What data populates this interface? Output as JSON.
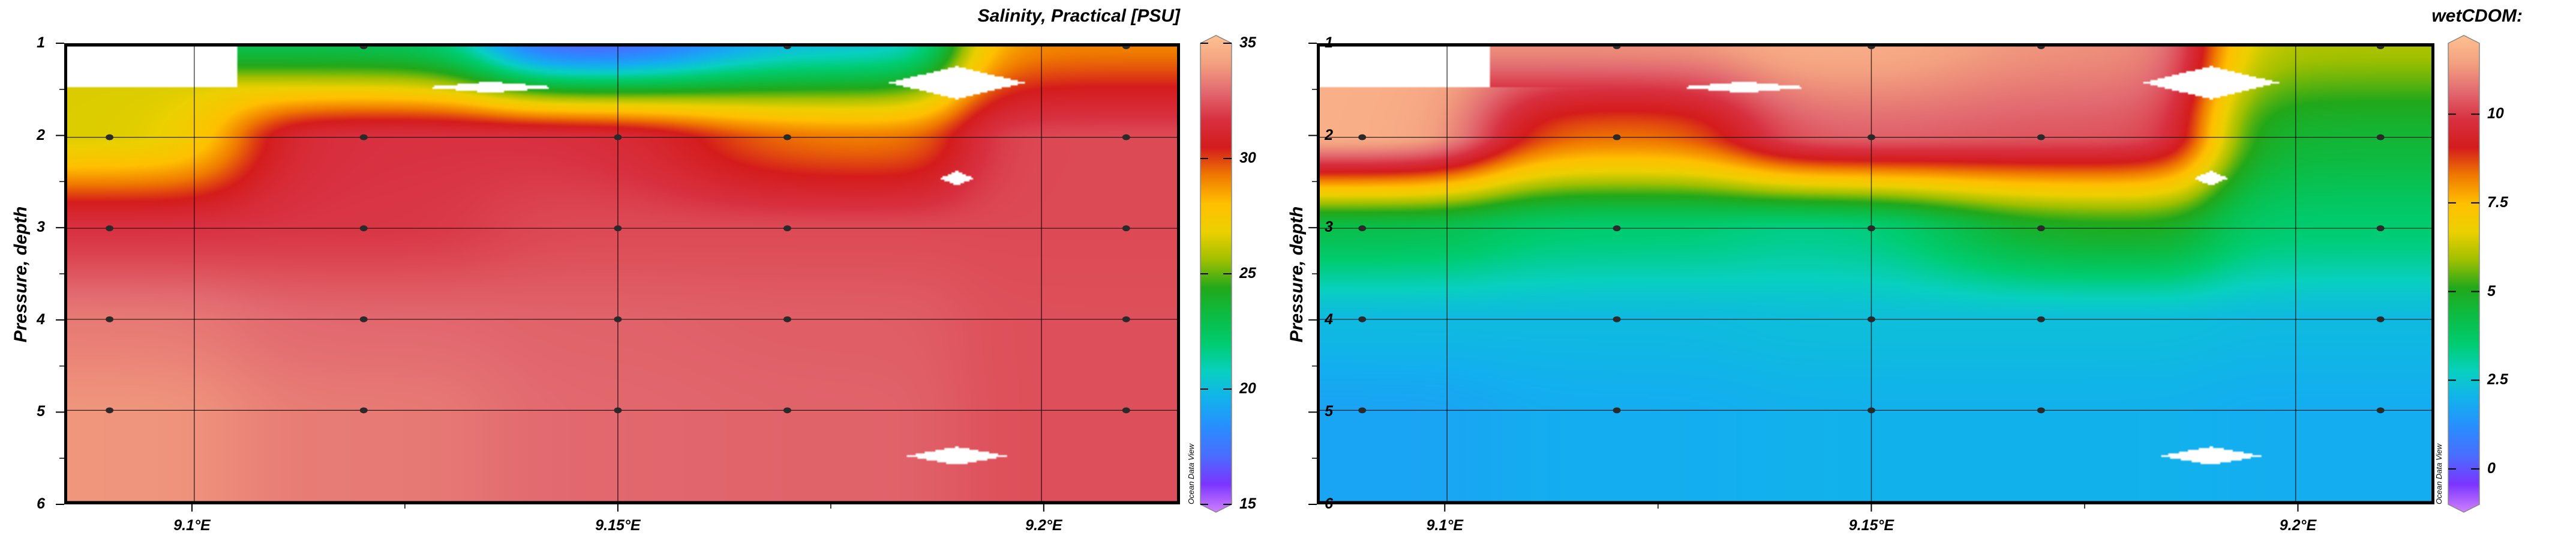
{
  "chart_data": [
    {
      "type": "heatmap",
      "title": "Salinity, Practical [PSU]",
      "xlabel": "",
      "ylabel": "Pressure, depth",
      "xlim": [
        9.085,
        9.216
      ],
      "ylim": [
        6,
        1
      ],
      "x_ticks": [
        {
          "value": 9.1,
          "label": "9.1°E"
        },
        {
          "value": 9.15,
          "label": "9.15°E"
        },
        {
          "value": 9.2,
          "label": "9.2°E"
        }
      ],
      "y_ticks": [
        1,
        2,
        3,
        4,
        5,
        6
      ],
      "grid": true,
      "colorbar": {
        "min": 15,
        "max": 35,
        "ticks": [
          15,
          20,
          25,
          30,
          35
        ],
        "credit": "Ocean Data View"
      },
      "stations": [
        9.09,
        9.12,
        9.15,
        9.17,
        9.21
      ],
      "depths": [
        1,
        2,
        3,
        4,
        5
      ],
      "values": [
        [
          null,
          23.0,
          17.0,
          20.5,
          29.0
        ],
        [
          26.5,
          31.5,
          31.5,
          29.0,
          32.0
        ],
        [
          31.5,
          31.6,
          32.0,
          32.0,
          32.0
        ],
        [
          33.0,
          32.6,
          32.5,
          32.4,
          32.1
        ],
        [
          33.6,
          33.0,
          32.6,
          32.5,
          32.1
        ]
      ],
      "samples": [
        [
          9.12,
          1
        ],
        [
          9.17,
          1
        ],
        [
          9.21,
          1
        ],
        [
          9.09,
          2
        ],
        [
          9.12,
          2
        ],
        [
          9.15,
          2
        ],
        [
          9.17,
          2
        ],
        [
          9.21,
          2
        ],
        [
          9.09,
          3
        ],
        [
          9.12,
          3
        ],
        [
          9.15,
          3
        ],
        [
          9.17,
          3
        ],
        [
          9.21,
          3
        ],
        [
          9.09,
          4
        ],
        [
          9.12,
          4
        ],
        [
          9.15,
          4
        ],
        [
          9.17,
          4
        ],
        [
          9.21,
          4
        ],
        [
          9.09,
          5
        ],
        [
          9.12,
          5
        ],
        [
          9.15,
          5
        ],
        [
          9.17,
          5
        ],
        [
          9.21,
          5
        ]
      ]
    },
    {
      "type": "heatmap",
      "title": "wetCDOM:",
      "xlabel": "",
      "ylabel": "Pressure, depth",
      "xlim": [
        9.085,
        9.216
      ],
      "ylim": [
        6,
        1
      ],
      "x_ticks": [
        {
          "value": 9.1,
          "label": "9.1°E"
        },
        {
          "value": 9.15,
          "label": "9.15°E"
        },
        {
          "value": 9.2,
          "label": "9.2°E"
        }
      ],
      "y_ticks": [
        1,
        2,
        3,
        4,
        5,
        6
      ],
      "grid": true,
      "colorbar": {
        "min": -1,
        "max": 12,
        "ticks": [
          0,
          2.5,
          5,
          7.5,
          10
        ],
        "credit": "Ocean Data View"
      },
      "stations": [
        9.09,
        9.12,
        9.15,
        9.17,
        9.21
      ],
      "depths": [
        1,
        2,
        3,
        4,
        5
      ],
      "values": [
        [
          null,
          11.0,
          11.6,
          11.0,
          6.0
        ],
        [
          11.6,
          8.2,
          10.4,
          10.2,
          4.6
        ],
        [
          4.2,
          3.6,
          3.3,
          5.0,
          3.6
        ],
        [
          2.3,
          2.3,
          2.4,
          2.4,
          2.3
        ],
        [
          1.8,
          2.0,
          2.1,
          2.1,
          2.0
        ]
      ],
      "samples": [
        [
          9.12,
          1
        ],
        [
          9.15,
          1
        ],
        [
          9.17,
          1
        ],
        [
          9.21,
          1
        ],
        [
          9.09,
          2
        ],
        [
          9.12,
          2
        ],
        [
          9.15,
          2
        ],
        [
          9.17,
          2
        ],
        [
          9.21,
          2
        ],
        [
          9.09,
          3
        ],
        [
          9.12,
          3
        ],
        [
          9.15,
          3
        ],
        [
          9.17,
          3
        ],
        [
          9.21,
          3
        ],
        [
          9.09,
          4
        ],
        [
          9.12,
          4
        ],
        [
          9.15,
          4
        ],
        [
          9.17,
          4
        ],
        [
          9.21,
          4
        ],
        [
          9.09,
          5
        ],
        [
          9.12,
          5
        ],
        [
          9.15,
          5
        ],
        [
          9.17,
          5
        ],
        [
          9.21,
          5
        ]
      ]
    }
  ],
  "colors": {
    "colormap": [
      "#d080ff",
      "#7a35ff",
      "#4a6cff",
      "#2a8cff",
      "#12b0ee",
      "#08d0c0",
      "#00cc70",
      "#0cbc44",
      "#22a81a",
      "#a0c000",
      "#ecd000",
      "#ffc000",
      "#f07a00",
      "#d41c1c",
      "#d83040",
      "#e26a70",
      "#f3a080",
      "#ffc090"
    ],
    "sample_dot": "#2a2a2a",
    "missing": "#ffffff"
  }
}
